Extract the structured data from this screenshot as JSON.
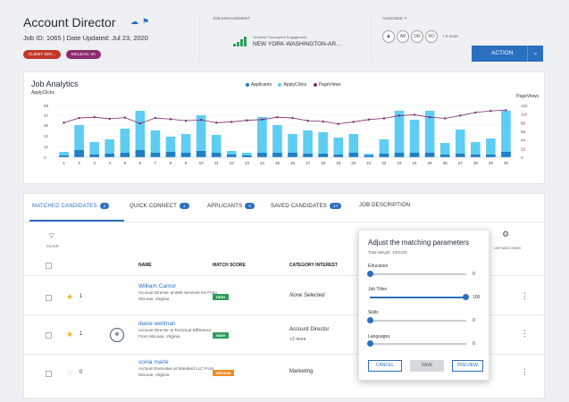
{
  "header": {
    "title": "Account Director",
    "job_line": "Job ID: 1065 | Date Updated: Jul 23, 2020",
    "tags": [
      "CLIENT SER...",
      "MCLEAN, VA"
    ],
    "tag_colors": [
      "#c0392b",
      "#8e2b6e"
    ],
    "engagement_label": "JOB ENGAGEMENT",
    "engagement_sub": "Greatest Thumbprint Engagement",
    "engagement_location": "NEW YORK-WASHINGTON-AR...",
    "assignee_label": "ASSIGNEE",
    "avatars": [
      "AB",
      "DR",
      "RD"
    ],
    "more_text": "+ 5 more",
    "action_label": "ACTION",
    "accent": "#2b6fbf"
  },
  "chart_data": {
    "type": "bar",
    "title": "Job Analytics",
    "legend": [
      "Applicants",
      "ApplyClicks",
      "PageViews"
    ],
    "legend_placement": "top-center",
    "left_axis_label": "ApplyClicks",
    "right_axis_label": "PageViews",
    "categories": [
      "1",
      "2",
      "3",
      "4",
      "5",
      "6",
      "7",
      "8",
      "9",
      "10",
      "11",
      "12",
      "13",
      "14",
      "15",
      "16",
      "17",
      "18",
      "19",
      "20",
      "21",
      "22",
      "23",
      "24",
      "25",
      "26",
      "27",
      "28",
      "29",
      "30"
    ],
    "left_ticks": [
      0,
      12,
      24,
      36,
      47,
      58
    ],
    "right_ticks": [
      0,
      22,
      44,
      66,
      88,
      110,
      132
    ],
    "ylim_left": [
      0,
      58
    ],
    "ylim_right": [
      0,
      132
    ],
    "series": [
      {
        "name": "Applicants",
        "color": "#1f7fc4",
        "values": [
          2,
          8,
          3,
          4,
          5,
          8,
          5,
          6,
          5,
          7,
          5,
          3,
          2,
          5,
          5,
          5,
          4,
          4,
          3,
          5,
          2,
          4,
          5,
          5,
          5,
          3,
          4,
          3,
          3,
          6
        ]
      },
      {
        "name": "ApplyClicks",
        "color": "#5ecdf2",
        "values": [
          6,
          36,
          17,
          20,
          32,
          52,
          30,
          23,
          26,
          47,
          25,
          7,
          5,
          45,
          36,
          26,
          30,
          28,
          22,
          26,
          4,
          20,
          52,
          42,
          52,
          16,
          31,
          17,
          21,
          52
        ]
      },
      {
        "name": "PageViews",
        "color": "#7a2a6d",
        "values": [
          88,
          100,
          102,
          98,
          101,
          86,
          100,
          97,
          93,
          95,
          88,
          90,
          94,
          96,
          102,
          100,
          93,
          91,
          85,
          90,
          96,
          99,
          106,
          108,
          102,
          99,
          106,
          114,
          118,
          120
        ]
      }
    ]
  },
  "tabs": [
    {
      "label": "MATCHED CANDIDATES",
      "badge": "2"
    },
    {
      "label": "QUICK CONNECT",
      "badge": "1"
    },
    {
      "label": "APPLICANTS",
      "badge": "0"
    },
    {
      "label": "SAVED CANDIDATES",
      "badge": "17"
    },
    {
      "label": "JOB DESCRIPTION",
      "badge": ""
    }
  ],
  "toolbar": {
    "filter_label": "FILTER",
    "settings_label": "LER MATCHING"
  },
  "columns": {
    "name": "NAME",
    "match_score": "MATCH SCORE",
    "category": "CATEGORY INTEREST"
  },
  "rows": [
    {
      "star": "on",
      "count": "1",
      "has_logo": false,
      "logo_text": "",
      "name": "William Cantor",
      "desc": "Account Director at Web Services Inc From McLean, Virginia",
      "score": "HIGH",
      "score_class": "high",
      "category": "None Selected",
      "category_more": ""
    },
    {
      "star": "on",
      "count": "1",
      "has_logo": true,
      "logo_text": "☸",
      "name": "diane wellman",
      "desc": "Account Director at Technical Difference From McLean, Virginia",
      "score": "HIGH",
      "score_class": "high",
      "category": "Account Director",
      "category_more": "+2 more"
    },
    {
      "star": "off",
      "count": "0",
      "has_logo": false,
      "logo_text": "",
      "name": "sonia marie",
      "desc": "Account Executive at Standard LLC From McLean, Virginia",
      "score": "MEDIUM",
      "score_class": "medium",
      "category": "Marketing",
      "category_more": ""
    }
  ],
  "popup": {
    "title": "Adjust the matching parameters",
    "total_weight": "Total Weight: 100/100",
    "sliders": [
      {
        "label": "Education",
        "value": "0",
        "fraction": 0
      },
      {
        "label": "Job Titles",
        "value": "100",
        "fraction": 1
      },
      {
        "label": "Skills",
        "value": "0",
        "fraction": 0
      },
      {
        "label": "Languages",
        "value": "0",
        "fraction": 0
      }
    ],
    "cancel_label": "CANCEL",
    "save_label": "SAVE",
    "preview_label": "PREVIEW"
  }
}
